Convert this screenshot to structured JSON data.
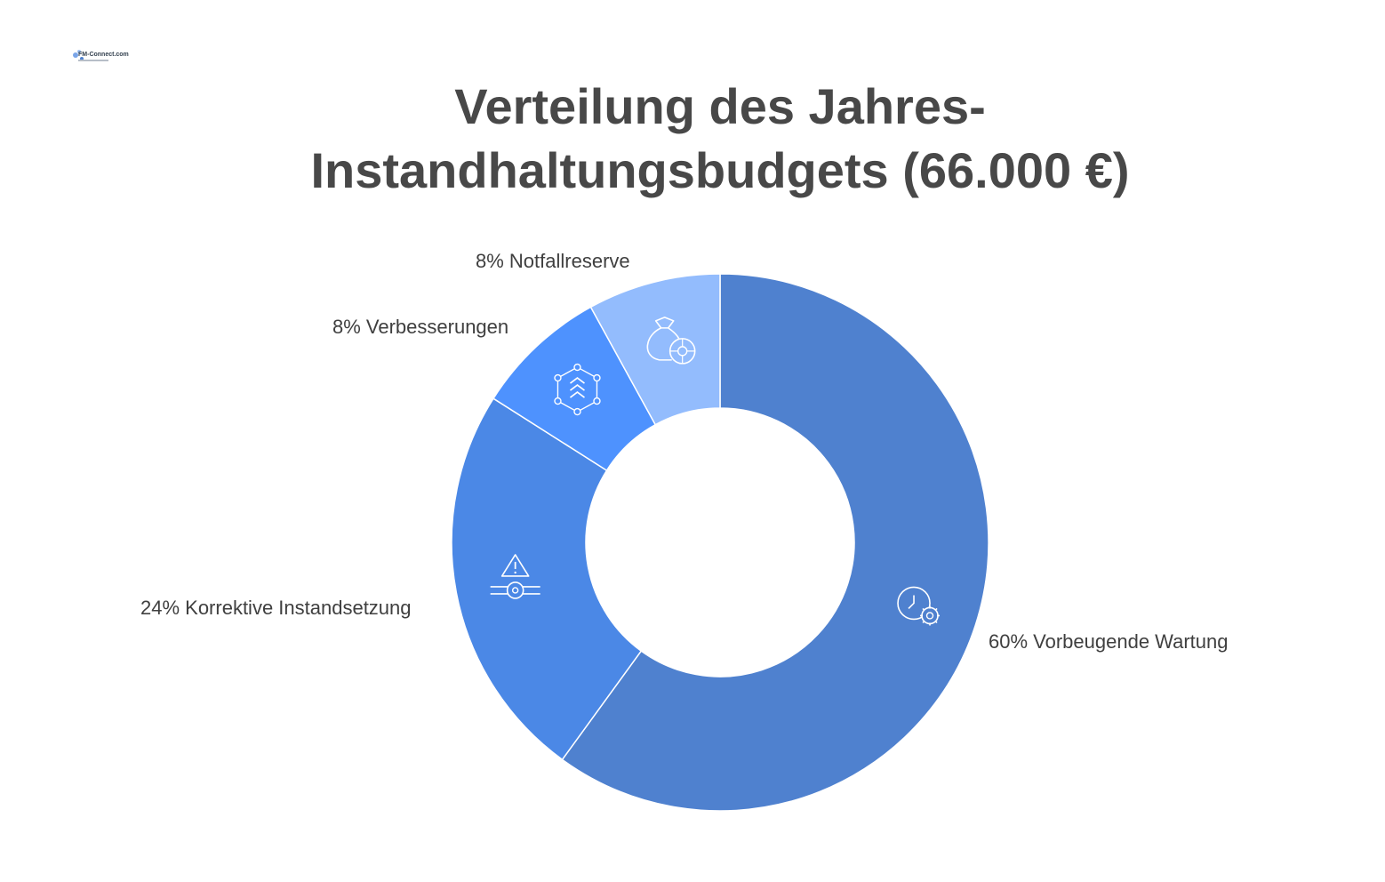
{
  "logo": {
    "text": "FM-Connect.com"
  },
  "chart_data": {
    "type": "pie",
    "title": "Verteilung des Jahres-Instandhaltungsbudgets (66.000 €)",
    "donut": true,
    "slices": [
      {
        "label": "60% Vorbeugende Wartung",
        "value": 60,
        "color": "#4f81cf",
        "icon": "clock-gear-icon"
      },
      {
        "label": "24% Korrektive Instandsetzung",
        "value": 24,
        "color": "#4b88e6",
        "icon": "warning-pipe-icon"
      },
      {
        "label": "8% Verbesserungen",
        "value": 8,
        "color": "#4e92fe",
        "icon": "improvement-network-icon"
      },
      {
        "label": "8% Notfallreserve",
        "value": 8,
        "color": "#93bcfd",
        "icon": "money-bag-icon"
      }
    ]
  }
}
